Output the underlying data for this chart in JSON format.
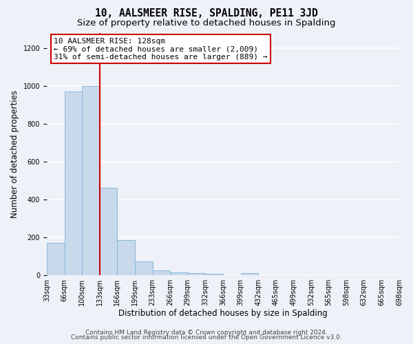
{
  "title": "10, AALSMEER RISE, SPALDING, PE11 3JD",
  "subtitle": "Size of property relative to detached houses in Spalding",
  "xlabel": "Distribution of detached houses by size in Spalding",
  "ylabel": "Number of detached properties",
  "bar_color": "#c9d9ec",
  "bar_edge_color": "#7bafd4",
  "bin_labels": [
    "33sqm",
    "66sqm",
    "100sqm",
    "133sqm",
    "166sqm",
    "199sqm",
    "233sqm",
    "266sqm",
    "299sqm",
    "332sqm",
    "366sqm",
    "399sqm",
    "432sqm",
    "465sqm",
    "499sqm",
    "532sqm",
    "565sqm",
    "598sqm",
    "632sqm",
    "665sqm",
    "698sqm"
  ],
  "bar_values": [
    170,
    970,
    1000,
    460,
    185,
    70,
    25,
    15,
    10,
    5,
    0,
    10,
    0,
    0,
    0,
    0,
    0,
    0,
    0,
    0
  ],
  "vline_x": 3.0,
  "vline_color": "#cc0000",
  "annotation_title": "10 AALSMEER RISE: 128sqm",
  "annotation_line1": "← 69% of detached houses are smaller (2,009)",
  "annotation_line2": "31% of semi-detached houses are larger (889) →",
  "annotation_box_color": "#ffffff",
  "annotation_box_edge_color": "#cc0000",
  "ylim": [
    0,
    1280
  ],
  "yticks": [
    0,
    200,
    400,
    600,
    800,
    1000,
    1200
  ],
  "footer_line1": "Contains HM Land Registry data © Crown copyright and database right 2024.",
  "footer_line2": "Contains public sector information licensed under the Open Government Licence v3.0.",
  "background_color": "#eef2f8",
  "plot_bg_color": "#eef2f8",
  "grid_color": "#ffffff",
  "title_fontsize": 10.5,
  "subtitle_fontsize": 9.5,
  "axis_label_fontsize": 8.5,
  "tick_fontsize": 7,
  "annotation_fontsize": 8,
  "footer_fontsize": 6.5
}
